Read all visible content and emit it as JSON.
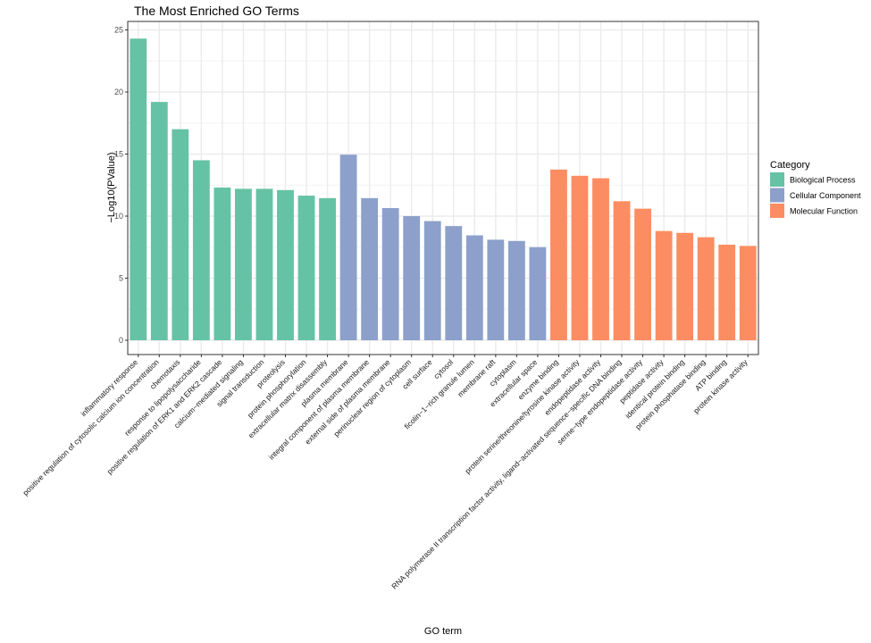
{
  "chart_data": {
    "type": "bar",
    "title": "The Most Enriched GO Terms",
    "xlabel": "GO term",
    "ylabel": "−Log10(PValue)",
    "ylim": [
      0,
      25
    ],
    "yticks": [
      0,
      5,
      10,
      15,
      20,
      25
    ],
    "grid": true,
    "legend": {
      "title": "Category",
      "position": "right",
      "entries": [
        {
          "label": "Biological Process",
          "color": "#66c2a5"
        },
        {
          "label": "Cellular Component",
          "color": "#8da0cb"
        },
        {
          "label": "Molecular Function",
          "color": "#fc8d62"
        }
      ]
    },
    "bars": [
      {
        "term": "inflammatory response",
        "value": 24.3,
        "category": "Biological Process"
      },
      {
        "term": "positive regulation of cytosolic calcium ion concentration",
        "value": 19.2,
        "category": "Biological Process"
      },
      {
        "term": "chemotaxis",
        "value": 17.0,
        "category": "Biological Process"
      },
      {
        "term": "response to lipopolysaccharide",
        "value": 14.5,
        "category": "Biological Process"
      },
      {
        "term": "positive regulation of ERK1 and ERK2 cascade",
        "value": 12.3,
        "category": "Biological Process"
      },
      {
        "term": "calcium−mediated signaling",
        "value": 12.2,
        "category": "Biological Process"
      },
      {
        "term": "signal transduction",
        "value": 12.2,
        "category": "Biological Process"
      },
      {
        "term": "proteolysis",
        "value": 12.1,
        "category": "Biological Process"
      },
      {
        "term": "protein phosphorylation",
        "value": 11.65,
        "category": "Biological Process"
      },
      {
        "term": "extracellular matrix disassembly",
        "value": 11.45,
        "category": "Biological Process"
      },
      {
        "term": "plasma membrane",
        "value": 14.95,
        "category": "Cellular Component"
      },
      {
        "term": "integral component of plasma membrane",
        "value": 11.45,
        "category": "Cellular Component"
      },
      {
        "term": "external side of plasma membrane",
        "value": 10.65,
        "category": "Cellular Component"
      },
      {
        "term": "perinuclear region of cytoplasm",
        "value": 10.0,
        "category": "Cellular Component"
      },
      {
        "term": "cell surface",
        "value": 9.6,
        "category": "Cellular Component"
      },
      {
        "term": "cytosol",
        "value": 9.2,
        "category": "Cellular Component"
      },
      {
        "term": "ficolin−1−rich granule lumen",
        "value": 8.45,
        "category": "Cellular Component"
      },
      {
        "term": "membrane raft",
        "value": 8.1,
        "category": "Cellular Component"
      },
      {
        "term": "cytoplasm",
        "value": 8.0,
        "category": "Cellular Component"
      },
      {
        "term": "extracellular space",
        "value": 7.5,
        "category": "Cellular Component"
      },
      {
        "term": "enzyme binding",
        "value": 13.75,
        "category": "Molecular Function"
      },
      {
        "term": "protein serine/threonine/tyrosine kinase activity",
        "value": 13.25,
        "category": "Molecular Function"
      },
      {
        "term": "endopeptidase activity",
        "value": 13.05,
        "category": "Molecular Function"
      },
      {
        "term": "RNA polymerase II transcription factor activity, ligand−activated sequence−specific DNA binding",
        "value": 11.2,
        "category": "Molecular Function"
      },
      {
        "term": "serine−type endopeptidase activity",
        "value": 10.6,
        "category": "Molecular Function"
      },
      {
        "term": "peptidase activity",
        "value": 8.8,
        "category": "Molecular Function"
      },
      {
        "term": "identical protein binding",
        "value": 8.65,
        "category": "Molecular Function"
      },
      {
        "term": "protein phosphatase binding",
        "value": 8.3,
        "category": "Molecular Function"
      },
      {
        "term": "ATP binding",
        "value": 7.7,
        "category": "Molecular Function"
      },
      {
        "term": "protein kinase activity",
        "value": 7.6,
        "category": "Molecular Function"
      }
    ]
  }
}
